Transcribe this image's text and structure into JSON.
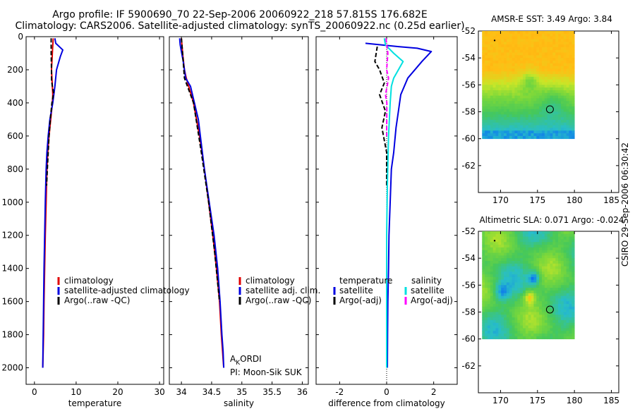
{
  "header": {
    "line1": "Argo profile: IF 5900690_70 22-Sep-2006 20060922_218 57.815S 176.682E",
    "line2": "Climatology: CARS2006. Satellite-adjusted climatology: synTS_20060922.nc (0.25d earlier)"
  },
  "credit": "CSIRO 29-Sep-2006 06:30:42",
  "colors": {
    "climatology": "#e00000",
    "satellite": "#0000e0",
    "argo": "#000000",
    "salinity_satellite": "#00e0e0",
    "salinity_argo": "#ff00ff"
  },
  "chart_data": [
    {
      "type": "line",
      "xlabel": "temperature",
      "xlim": [
        -2,
        31
      ],
      "ylim": [
        0,
        2100
      ],
      "y_reversed": true,
      "xticks": [
        0,
        10,
        20,
        30
      ],
      "yticks": [
        0,
        200,
        400,
        600,
        800,
        1000,
        1200,
        1400,
        1600,
        1800,
        2000
      ],
      "legend": {
        "position": "bottom-right",
        "labels": [
          "climatology",
          "satellite-adjusted climatology",
          "Argo(..raw -QC)"
        ]
      },
      "series": [
        {
          "name": "climatology",
          "color": "#e00000",
          "x": [
            4.5,
            4.3,
            4.1,
            4.3,
            4.4,
            4.3,
            3.9,
            3.5,
            3.2,
            3.0,
            2.8,
            2.6,
            2.45,
            2.3,
            2.2,
            2.1,
            2.0
          ],
          "y": [
            10,
            100,
            200,
            300,
            350,
            400,
            500,
            600,
            700,
            800,
            1000,
            1200,
            1400,
            1600,
            1800,
            1900,
            2000
          ]
        },
        {
          "name": "satellite-adjusted climatology",
          "color": "#0000e0",
          "x": [
            4.9,
            5.1,
            6.8,
            6.2,
            5.3,
            4.9,
            4.4,
            3.7,
            3.3,
            3.0,
            2.8,
            2.6,
            2.45,
            2.3,
            2.2,
            2.1,
            2.0
          ],
          "y": [
            10,
            40,
            80,
            120,
            200,
            300,
            400,
            500,
            600,
            700,
            800,
            1000,
            1200,
            1400,
            1600,
            1800,
            2000
          ]
        },
        {
          "name": "Argo(..raw -QC)",
          "color": "#000000",
          "dashed": true,
          "x": [
            4.0,
            4.0,
            4.1,
            4.1,
            4.3,
            4.6,
            4.2,
            3.8,
            3.5,
            3.3,
            3.1,
            2.9
          ],
          "y": [
            10,
            100,
            200,
            260,
            300,
            340,
            400,
            500,
            600,
            700,
            800,
            900
          ]
        }
      ]
    },
    {
      "type": "line",
      "xlabel": "salinity",
      "xlim": [
        33.8,
        36.1
      ],
      "ylim": [
        0,
        2100
      ],
      "y_reversed": true,
      "xticks": [
        34,
        34.5,
        35,
        35.5,
        36
      ],
      "legend": {
        "position": "bottom-right",
        "labels": [
          "climatology",
          "satellite adj. clim.",
          "Argo(..raw -QC)"
        ]
      },
      "annotation": {
        "line1_a": "A",
        "line1_sub": "K",
        "line1_b": "ORDI",
        "line2": "PI: Moon-Sik SUK"
      },
      "series": [
        {
          "name": "climatology",
          "color": "#e00000",
          "x": [
            34.0,
            34.02,
            34.05,
            34.08,
            34.12,
            34.2,
            34.3,
            34.38,
            34.45,
            34.52,
            34.58,
            34.63,
            34.66,
            34.68,
            34.69,
            34.7
          ],
          "y": [
            10,
            100,
            200,
            250,
            300,
            400,
            600,
            800,
            1000,
            1200,
            1400,
            1600,
            1800,
            1900,
            1950,
            2000
          ]
        },
        {
          "name": "satellite adj. clim.",
          "color": "#0000e0",
          "x": [
            33.97,
            33.98,
            34.03,
            34.07,
            34.15,
            34.28,
            34.38,
            34.46,
            34.54,
            34.6,
            34.64,
            34.67,
            34.69,
            34.7
          ],
          "y": [
            10,
            50,
            150,
            250,
            300,
            500,
            800,
            1000,
            1200,
            1400,
            1600,
            1800,
            1900,
            2000
          ]
        },
        {
          "name": "Argo(..raw -QC)",
          "color": "#000000",
          "dashed": true,
          "x": [
            34.0,
            34.02,
            34.05,
            34.1,
            34.2,
            34.33,
            34.45,
            34.55,
            34.63
          ],
          "y": [
            10,
            100,
            250,
            300,
            400,
            700,
            1000,
            1300,
            1600
          ]
        }
      ]
    },
    {
      "type": "line",
      "xlabel": "difference from climatology",
      "xlim": [
        -3,
        3
      ],
      "ylim": [
        0,
        2100
      ],
      "y_reversed": true,
      "xticks": [
        -2,
        0,
        2
      ],
      "legend": {
        "position": "bottom",
        "groups": [
          {
            "title": "temperature",
            "labels": [
              "satellite",
              "Argo(-adj)"
            ]
          },
          {
            "title": "salinity",
            "labels": [
              "satellite",
              "Argo(-adj)"
            ]
          }
        ]
      },
      "series": [
        {
          "name": "temperature satellite",
          "color": "#0000e0",
          "x": [
            -0.9,
            0.5,
            1.3,
            1.9,
            1.5,
            0.9,
            0.6,
            0.5,
            0.4,
            0.3,
            0.2,
            0.15,
            0.1,
            0.08,
            0.05,
            0.04,
            0.03
          ],
          "y": [
            40,
            60,
            70,
            90,
            150,
            250,
            350,
            450,
            550,
            700,
            800,
            1000,
            1200,
            1400,
            1600,
            1800,
            2000
          ]
        },
        {
          "name": "temperature Argo(-adj)",
          "color": "#000000",
          "dashed": true,
          "x": [
            -0.4,
            -0.5,
            -0.3,
            -0.1,
            -0.3,
            -0.05,
            -0.2,
            0.0,
            0.0
          ],
          "y": [
            60,
            150,
            200,
            280,
            350,
            450,
            550,
            700,
            900
          ]
        },
        {
          "name": "salinity satellite",
          "color": "#00e0e0",
          "x": [
            -0.1,
            -0.05,
            0.3,
            0.7,
            0.3,
            0.2,
            0.15,
            0.08,
            0.03,
            0.0,
            0.0,
            0.0
          ],
          "y": [
            10,
            50,
            100,
            150,
            250,
            300,
            400,
            600,
            900,
            1200,
            1600,
            2000
          ]
        },
        {
          "name": "salinity Argo(-adj)",
          "color": "#ff00ff",
          "dashed": true,
          "x": [
            -0.03,
            0.05,
            0.0,
            0.08,
            0.02,
            -0.05,
            0.01,
            0.0
          ],
          "y": [
            10,
            100,
            200,
            250,
            300,
            350,
            400,
            600
          ]
        }
      ]
    },
    {
      "type": "heatmap",
      "title": "AMSR-E SST: 3.49 Argo: 3.84",
      "xlim": [
        167,
        186
      ],
      "ylim": [
        -64,
        -52
      ],
      "xticks": [
        170,
        175,
        180,
        185
      ],
      "yticks": [
        -52,
        -54,
        -56,
        -58,
        -60,
        -62
      ],
      "data_extent": {
        "lon": [
          167.5,
          180
        ],
        "lat": [
          -60,
          -52
        ]
      },
      "marker": {
        "lon": 176.682,
        "lat": -57.815
      }
    },
    {
      "type": "heatmap",
      "title": "Altimetric SLA: 0.071 Argo: -0.024",
      "xlim": [
        167,
        186
      ],
      "ylim": [
        -64,
        -52
      ],
      "xticks": [
        170,
        175,
        180,
        185
      ],
      "yticks": [
        -52,
        -54,
        -56,
        -58,
        -60,
        -62
      ],
      "data_extent": {
        "lon": [
          167.5,
          180
        ],
        "lat": [
          -60,
          -52
        ]
      },
      "marker": {
        "lon": 176.682,
        "lat": -57.815
      }
    }
  ]
}
